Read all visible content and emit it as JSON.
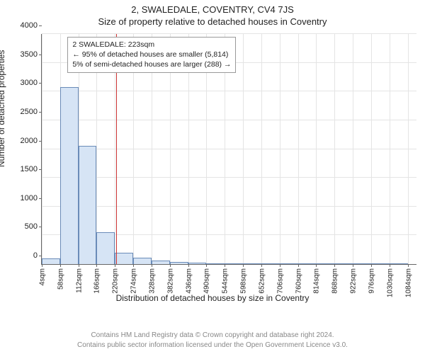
{
  "header": {
    "address": "2, SWALEDALE, COVENTRY, CV4 7JS",
    "subtitle": "Size of property relative to detached houses in Coventry"
  },
  "chart": {
    "type": "histogram",
    "ylabel": "Number of detached properties",
    "xlabel": "Distribution of detached houses by size in Coventry",
    "ylim": [
      0,
      4000
    ],
    "ytick_step": 500,
    "yticks": [
      0,
      500,
      1000,
      1500,
      2000,
      2500,
      3000,
      3500,
      4000
    ],
    "xticks": [
      4,
      58,
      112,
      166,
      220,
      274,
      328,
      382,
      436,
      490,
      544,
      598,
      652,
      706,
      760,
      814,
      868,
      922,
      976,
      1030,
      1084
    ],
    "xtick_unit": "sqm",
    "xlim": [
      4,
      1110
    ],
    "bar_color_fill": "#d6e4f5",
    "bar_color_stroke": "#6a8bb8",
    "bar_width_units": 54,
    "bars": [
      {
        "x": 4,
        "count": 100
      },
      {
        "x": 58,
        "count": 3075
      },
      {
        "x": 112,
        "count": 2060
      },
      {
        "x": 166,
        "count": 560
      },
      {
        "x": 220,
        "count": 200
      },
      {
        "x": 274,
        "count": 110
      },
      {
        "x": 328,
        "count": 60
      },
      {
        "x": 382,
        "count": 40
      },
      {
        "x": 436,
        "count": 30
      },
      {
        "x": 490,
        "count": 15
      },
      {
        "x": 544,
        "count": 8
      },
      {
        "x": 598,
        "count": 5
      },
      {
        "x": 652,
        "count": 4
      },
      {
        "x": 706,
        "count": 3
      },
      {
        "x": 760,
        "count": 2
      },
      {
        "x": 814,
        "count": 2
      },
      {
        "x": 868,
        "count": 1
      },
      {
        "x": 922,
        "count": 1
      },
      {
        "x": 976,
        "count": 1
      },
      {
        "x": 1030,
        "count": 1
      }
    ],
    "reference_line": {
      "x": 223,
      "color": "#cc3333"
    },
    "callout": {
      "line1": "2 SWALEDALE: 223sqm",
      "line2": "← 95% of detached houses are smaller (5,814)",
      "line3": "5% of semi-detached houses are larger (288) →"
    },
    "grid_color": "#e4e4e4",
    "axis_color": "#666666",
    "background_color": "#ffffff",
    "tick_fontsize": 11,
    "label_fontsize": 12
  },
  "footer": {
    "line1": "Contains HM Land Registry data © Crown copyright and database right 2024.",
    "line2": "Contains public sector information licensed under the Open Government Licence v3.0."
  }
}
